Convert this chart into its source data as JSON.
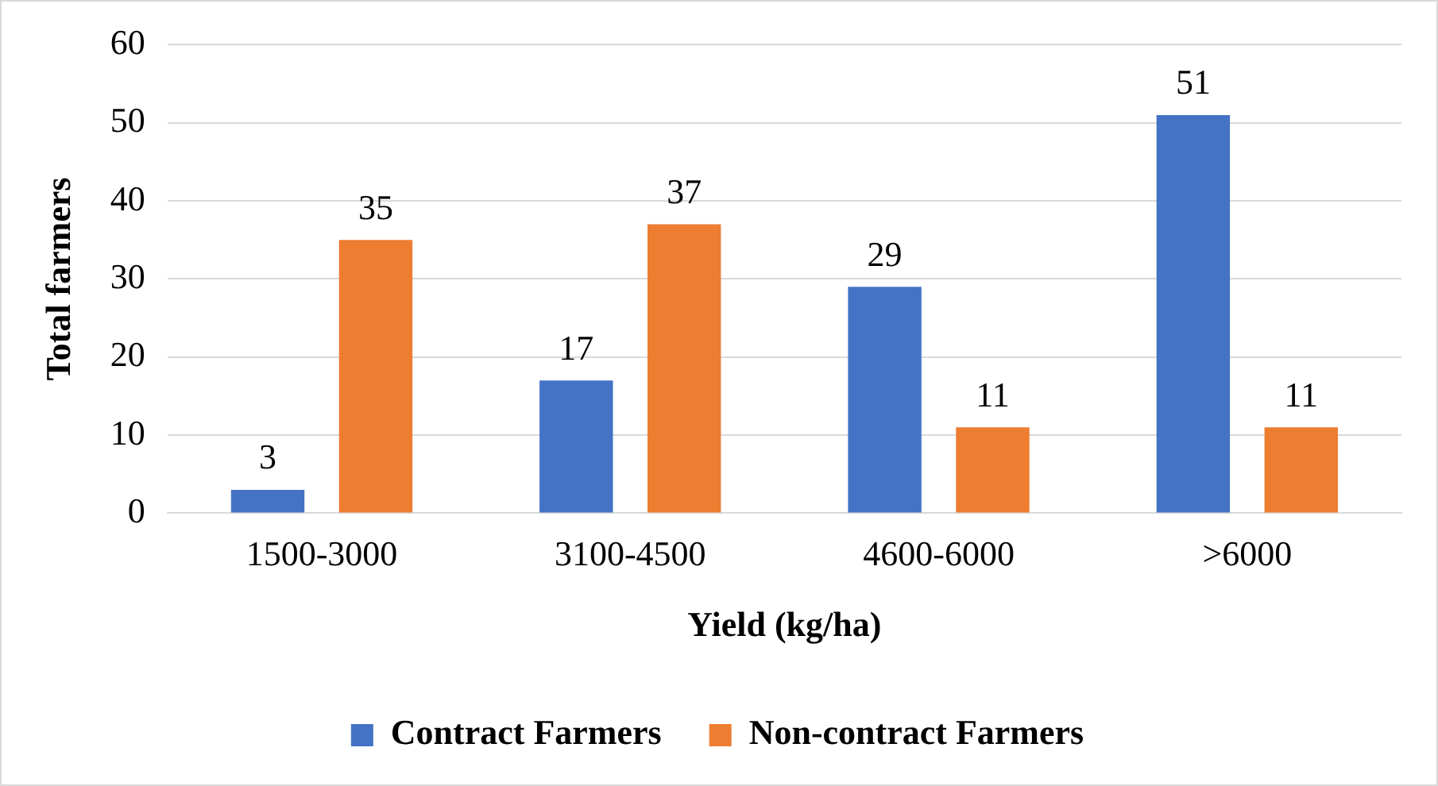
{
  "chart_data": {
    "type": "bar",
    "xlabel": "Yield (kg/ha)",
    "ylabel": "Total farmers",
    "categories": [
      "1500-3000",
      "3100-4500",
      "4600-6000",
      ">6000"
    ],
    "series": [
      {
        "name": "Contract Farmers",
        "color": "#4472c4",
        "values": [
          3,
          17,
          29,
          51
        ]
      },
      {
        "name": "Non-contract Farmers",
        "color": "#ed7d31",
        "values": [
          35,
          37,
          11,
          11
        ]
      }
    ],
    "ylim": [
      0,
      60
    ],
    "yticks": [
      0,
      10,
      20,
      30,
      40,
      50,
      60
    ],
    "grid": "y",
    "legend": "bottom",
    "data_labels": true
  }
}
